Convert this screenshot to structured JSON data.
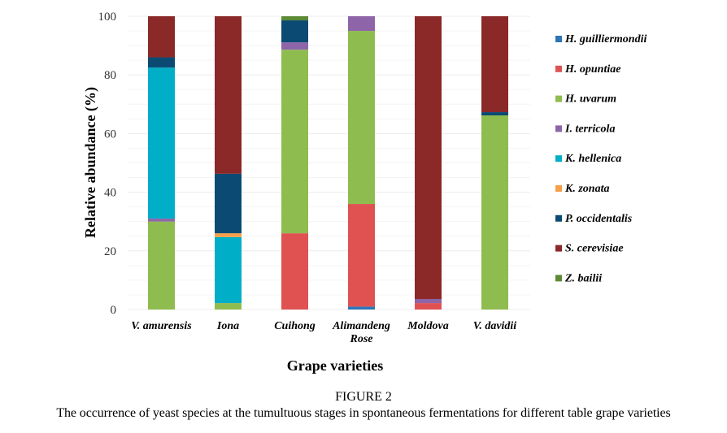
{
  "figure": {
    "number_label": "FIGURE 2",
    "caption": "The occurrence of yeast species at the tumultuous stages in spontaneous fermentations for different table grape varieties"
  },
  "chart_data": {
    "type": "bar",
    "stacked": true,
    "title": "",
    "xlabel": "Grape varieties",
    "ylabel": "Relative abundance (%)",
    "ylim": [
      0,
      100
    ],
    "yticks": [
      0,
      20,
      40,
      60,
      80,
      100
    ],
    "grid": true,
    "legend_position": "right",
    "categories": [
      "V. amurensis",
      "Iona",
      "Cuihong",
      "Alimandeng Rose",
      "Moldova",
      "V. davidii"
    ],
    "category_lines": [
      [
        "V. amurensis"
      ],
      [
        "Iona"
      ],
      [
        "Cuihong"
      ],
      [
        "Alimandeng",
        "Rose"
      ],
      [
        "Moldova"
      ],
      [
        "V. davidii"
      ]
    ],
    "series": [
      {
        "name": "H. guilliermondii",
        "color": "#2e75b6",
        "values": [
          0,
          0,
          0,
          1.0,
          0,
          0
        ]
      },
      {
        "name": "H. opuntiae",
        "color": "#e05252",
        "values": [
          0,
          0,
          26.0,
          35.0,
          2.2,
          0
        ]
      },
      {
        "name": "H. uvarum",
        "color": "#8fbc4f",
        "values": [
          30.0,
          2.2,
          62.6,
          59.0,
          0,
          66.2
        ]
      },
      {
        "name": "I. terricola",
        "color": "#8e65a8",
        "values": [
          1.0,
          0,
          2.5,
          5.0,
          1.4,
          0
        ]
      },
      {
        "name": "K. hellenica",
        "color": "#00aec7",
        "values": [
          51.5,
          22.5,
          0,
          0,
          0,
          0
        ]
      },
      {
        "name": "K. zonata",
        "color": "#f5a049",
        "values": [
          0,
          1.3,
          0,
          0,
          0,
          0
        ]
      },
      {
        "name": "P. occidentalis",
        "color": "#0b4a72",
        "values": [
          3.5,
          20.3,
          7.5,
          0,
          0,
          1.1
        ]
      },
      {
        "name": "S. cerevisiae",
        "color": "#8b2828",
        "values": [
          14.0,
          53.7,
          0,
          0,
          96.4,
          32.7
        ]
      },
      {
        "name": "Z. bailii",
        "color": "#5d8a35",
        "values": [
          0,
          0,
          1.4,
          0,
          0,
          0
        ]
      }
    ]
  }
}
